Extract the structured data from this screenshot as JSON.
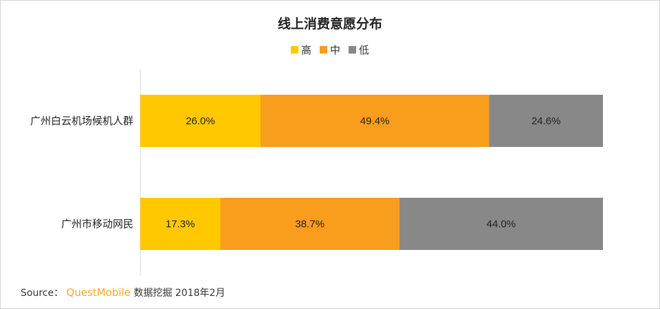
{
  "chart_data": {
    "type": "bar",
    "orientation": "horizontal",
    "stacked": true,
    "title": "线上消费意愿分布",
    "categories": [
      "广州白云机场候机人群",
      "广州市移动网民"
    ],
    "series": [
      {
        "name": "高",
        "color": "#ffc800",
        "values": [
          26.0,
          17.3
        ],
        "labels": [
          "26.0%",
          "17.3%"
        ]
      },
      {
        "name": "中",
        "color": "#f99d1c",
        "values": [
          49.4,
          38.7
        ],
        "labels": [
          "49.4%",
          "38.7%"
        ]
      },
      {
        "name": "低",
        "color": "#888888",
        "values": [
          24.6,
          44.0
        ],
        "labels": [
          "24.6%",
          "44.0%"
        ]
      }
    ],
    "xlim": [
      0,
      100
    ],
    "grid": false,
    "legend_position": "top-center"
  },
  "source": {
    "prefix": "Source：",
    "brand": "QuestMobile",
    "suffix": "数据挖掘 2018年2月"
  }
}
